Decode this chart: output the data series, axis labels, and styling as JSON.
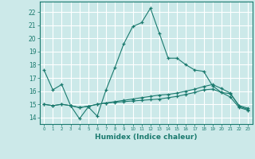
{
  "xlabel": "Humidex (Indice chaleur)",
  "xlim": [
    -0.5,
    23.5
  ],
  "ylim": [
    13.5,
    22.8
  ],
  "yticks": [
    14,
    15,
    16,
    17,
    18,
    19,
    20,
    21,
    22
  ],
  "xticks": [
    0,
    1,
    2,
    3,
    4,
    5,
    6,
    7,
    8,
    9,
    10,
    11,
    12,
    13,
    14,
    15,
    16,
    17,
    18,
    19,
    20,
    21,
    22,
    23
  ],
  "bg_color": "#cce9e9",
  "grid_color": "#ffffff",
  "line_color": "#1a7a6e",
  "line1_x": [
    0,
    1,
    2,
    3,
    4,
    5,
    6,
    7,
    8,
    9,
    10,
    11,
    12,
    13,
    14,
    15,
    16,
    17,
    18,
    19,
    20,
    21,
    22,
    23
  ],
  "line1_y": [
    17.6,
    16.1,
    16.5,
    14.9,
    13.9,
    14.8,
    14.1,
    16.1,
    17.8,
    19.6,
    20.9,
    21.2,
    22.3,
    20.4,
    18.5,
    18.5,
    18.0,
    17.6,
    17.5,
    16.4,
    15.9,
    15.8,
    14.9,
    14.7
  ],
  "line2_x": [
    0,
    1,
    2,
    3,
    4,
    5,
    6,
    7,
    8,
    9,
    10,
    11,
    12,
    13,
    14,
    15,
    16,
    17,
    18,
    19,
    20,
    21,
    22,
    23
  ],
  "line2_y": [
    15.0,
    14.9,
    15.0,
    14.9,
    14.75,
    14.85,
    15.0,
    15.1,
    15.2,
    15.3,
    15.4,
    15.5,
    15.6,
    15.7,
    15.75,
    15.85,
    16.0,
    16.15,
    16.35,
    16.5,
    16.2,
    15.85,
    14.85,
    14.6
  ],
  "line3_x": [
    0,
    1,
    2,
    3,
    4,
    5,
    6,
    7,
    8,
    9,
    10,
    11,
    12,
    13,
    14,
    15,
    16,
    17,
    18,
    19,
    20,
    21,
    22,
    23
  ],
  "line3_y": [
    15.0,
    14.9,
    15.0,
    14.9,
    14.75,
    14.85,
    15.0,
    15.1,
    15.15,
    15.2,
    15.25,
    15.3,
    15.35,
    15.4,
    15.5,
    15.6,
    15.75,
    15.9,
    16.1,
    16.15,
    15.9,
    15.55,
    14.75,
    14.55
  ]
}
